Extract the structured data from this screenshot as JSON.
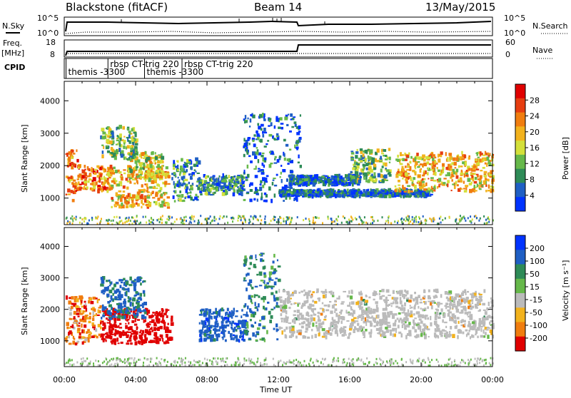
{
  "header": {
    "station": "Blackstone (fitACF)",
    "beam": "Beam 14",
    "date": "13/May/2015"
  },
  "panels": {
    "nsky_label": "N.Sky",
    "nsky_ticks": [
      "10^5",
      "10^0"
    ],
    "nsearch_label": "N.Search",
    "nsearch_ticks": [
      "10^5",
      "10^0"
    ],
    "freq_label": "Freq.",
    "freq_unit": "[MHz]",
    "freq_ticks": [
      "18",
      "8"
    ],
    "nave_label": "Nave",
    "nave_ticks": [
      "60",
      "0"
    ],
    "cpid_label": "CPID",
    "cpid_entries": [
      {
        "text": "themis -3300",
        "start_hour": 0.1
      },
      {
        "text": "rbsp CT-trig 220",
        "start_hour": 2.45
      },
      {
        "text": "themis -3300",
        "start_hour": 4.5
      },
      {
        "text": "rbsp CT-trig 220",
        "start_hour": 6.6
      }
    ]
  },
  "axes": {
    "xlabel": "Time UT",
    "ylabel": "Slant Range [km]",
    "xticks": [
      "00:00",
      "04:00",
      "08:00",
      "12:00",
      "16:00",
      "20:00",
      "00:00"
    ],
    "yticks": [
      "1000",
      "2000",
      "3000",
      "4000"
    ]
  },
  "colorbars": {
    "power_label": "Power [dB]",
    "power_ticks": [
      "28",
      "24",
      "20",
      "16",
      "12",
      "8",
      "4"
    ],
    "velocity_label": "Velocity [m s⁻¹]",
    "velocity_ticks": [
      "200",
      "100",
      "50",
      "15",
      "-15",
      "-50",
      "-100",
      "-200"
    ]
  },
  "chart_data": [
    {
      "type": "heatmap",
      "title": "",
      "quantity": "Power",
      "units": "dB",
      "xlabel": "Time UT",
      "ylabel": "Slant Range [km]",
      "xlim_hours": [
        0,
        24
      ],
      "ylim_km": [
        180,
        4600
      ],
      "color_levels": [
        0,
        4,
        8,
        12,
        16,
        20,
        24,
        28,
        32
      ],
      "colors": [
        "#0033ff",
        "#1f5fc4",
        "#2e8b57",
        "#66b84a",
        "#d4e03a",
        "#f2b21d",
        "#f07d0f",
        "#e63d10",
        "#e00000"
      ],
      "regions": [
        {
          "t": [
            0.0,
            0.7
          ],
          "r": [
            900,
            2500
          ],
          "level": 24,
          "desc": "early strong band"
        },
        {
          "t": [
            0.7,
            2.6
          ],
          "r": [
            1200,
            2000
          ],
          "level": 24
        },
        {
          "t": [
            2.6,
            5.8
          ],
          "r": [
            700,
            2000
          ],
          "level": 20
        },
        {
          "t": [
            3.5,
            5.5
          ],
          "r": [
            1600,
            2400
          ],
          "level": 16
        },
        {
          "t": [
            2.0,
            4.0
          ],
          "r": [
            2200,
            3200
          ],
          "level": 12
        },
        {
          "t": [
            6.0,
            7.5
          ],
          "r": [
            900,
            2200
          ],
          "level": 8
        },
        {
          "t": [
            7.5,
            10.0
          ],
          "r": [
            1100,
            1700
          ],
          "level": 10
        },
        {
          "t": [
            10.0,
            13.2
          ],
          "r": [
            900,
            3600
          ],
          "level": 6
        },
        {
          "t": [
            12.5,
            16.5
          ],
          "r": [
            1400,
            1700
          ],
          "level": 6
        },
        {
          "t": [
            16.0,
            18.2
          ],
          "r": [
            1500,
            2500
          ],
          "level": 12
        },
        {
          "t": [
            12.0,
            20.5
          ],
          "r": [
            1050,
            1250
          ],
          "level": 6
        },
        {
          "t": [
            18.5,
            24.0
          ],
          "r": [
            1200,
            2400
          ],
          "level": 22
        }
      ]
    },
    {
      "type": "heatmap",
      "title": "",
      "quantity": "Velocity",
      "units": "m s-1",
      "xlabel": "Time UT",
      "ylabel": "Slant Range [km]",
      "xlim_hours": [
        0,
        24
      ],
      "ylim_km": [
        180,
        4600
      ],
      "color_levels": [
        -200,
        -100,
        -50,
        -15,
        15,
        50,
        100,
        200
      ],
      "colors": [
        "#e00000",
        "#f07d0f",
        "#f2b21d",
        "#bbbbbb",
        "#66b84a",
        "#2e8b57",
        "#1f5fc4",
        "#0033ff"
      ],
      "regions": [
        {
          "t": [
            0.0,
            2.0
          ],
          "r": [
            900,
            2400
          ],
          "value": -60
        },
        {
          "t": [
            2.0,
            6.0
          ],
          "r": [
            900,
            2000
          ],
          "value": -180
        },
        {
          "t": [
            2.0,
            4.5
          ],
          "r": [
            1700,
            3000
          ],
          "value": 120
        },
        {
          "t": [
            7.5,
            10.2
          ],
          "r": [
            1000,
            2000
          ],
          "value": 150
        },
        {
          "t": [
            10.0,
            12.0
          ],
          "r": [
            1000,
            3800
          ],
          "value": 90
        },
        {
          "t": [
            12.0,
            24.0
          ],
          "r": [
            1100,
            2600
          ],
          "value": 0
        }
      ]
    }
  ]
}
